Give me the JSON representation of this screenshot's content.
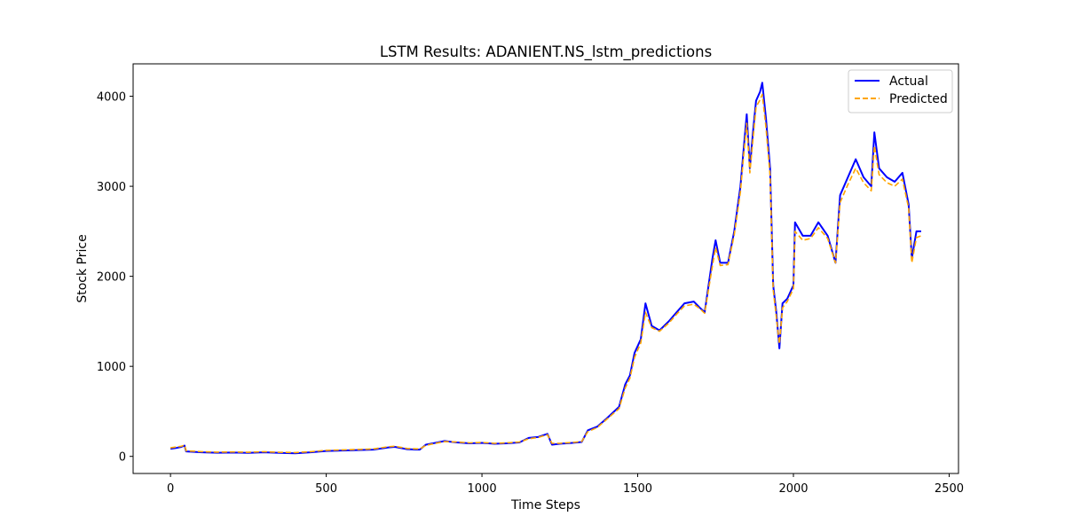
{
  "chart_data": {
    "type": "line",
    "title": "LSTM Results: ADANIENT.NS_lstm_predictions",
    "xlabel": "Time Steps",
    "ylabel": "Stock Price",
    "xlim": [
      -120,
      2530
    ],
    "ylim": [
      -190,
      4360
    ],
    "xticks": [
      0,
      500,
      1000,
      1500,
      2000,
      2500
    ],
    "yticks": [
      0,
      1000,
      2000,
      3000,
      4000
    ],
    "grid": false,
    "legend_position": "top-right",
    "series": [
      {
        "name": "Actual",
        "color": "#0000ff",
        "style": "solid",
        "points": [
          [
            0,
            85
          ],
          [
            20,
            95
          ],
          [
            35,
            105
          ],
          [
            45,
            120
          ],
          [
            50,
            55
          ],
          [
            100,
            45
          ],
          [
            150,
            40
          ],
          [
            200,
            42
          ],
          [
            250,
            38
          ],
          [
            300,
            45
          ],
          [
            350,
            38
          ],
          [
            400,
            35
          ],
          [
            450,
            45
          ],
          [
            500,
            60
          ],
          [
            550,
            65
          ],
          [
            600,
            70
          ],
          [
            650,
            75
          ],
          [
            700,
            100
          ],
          [
            720,
            105
          ],
          [
            760,
            80
          ],
          [
            800,
            75
          ],
          [
            820,
            130
          ],
          [
            850,
            150
          ],
          [
            880,
            170
          ],
          [
            920,
            155
          ],
          [
            960,
            145
          ],
          [
            1000,
            150
          ],
          [
            1040,
            140
          ],
          [
            1080,
            145
          ],
          [
            1120,
            155
          ],
          [
            1150,
            205
          ],
          [
            1180,
            215
          ],
          [
            1210,
            250
          ],
          [
            1225,
            130
          ],
          [
            1250,
            140
          ],
          [
            1290,
            150
          ],
          [
            1320,
            160
          ],
          [
            1340,
            290
          ],
          [
            1370,
            330
          ],
          [
            1400,
            420
          ],
          [
            1440,
            550
          ],
          [
            1460,
            800
          ],
          [
            1475,
            900
          ],
          [
            1490,
            1150
          ],
          [
            1510,
            1300
          ],
          [
            1525,
            1700
          ],
          [
            1545,
            1450
          ],
          [
            1570,
            1400
          ],
          [
            1600,
            1500
          ],
          [
            1625,
            1600
          ],
          [
            1650,
            1700
          ],
          [
            1680,
            1720
          ],
          [
            1700,
            1650
          ],
          [
            1715,
            1600
          ],
          [
            1740,
            2200
          ],
          [
            1750,
            2400
          ],
          [
            1765,
            2150
          ],
          [
            1790,
            2150
          ],
          [
            1810,
            2500
          ],
          [
            1830,
            3000
          ],
          [
            1840,
            3400
          ],
          [
            1850,
            3800
          ],
          [
            1860,
            3200
          ],
          [
            1870,
            3600
          ],
          [
            1880,
            3950
          ],
          [
            1893,
            4050
          ],
          [
            1900,
            4150
          ],
          [
            1912,
            3750
          ],
          [
            1925,
            3200
          ],
          [
            1935,
            1900
          ],
          [
            1945,
            1600
          ],
          [
            1955,
            1200
          ],
          [
            1965,
            1700
          ],
          [
            1980,
            1750
          ],
          [
            2000,
            1900
          ],
          [
            2005,
            2600
          ],
          [
            2030,
            2450
          ],
          [
            2055,
            2450
          ],
          [
            2080,
            2600
          ],
          [
            2110,
            2450
          ],
          [
            2135,
            2150
          ],
          [
            2150,
            2900
          ],
          [
            2175,
            3100
          ],
          [
            2200,
            3300
          ],
          [
            2225,
            3100
          ],
          [
            2250,
            3000
          ],
          [
            2260,
            3600
          ],
          [
            2275,
            3200
          ],
          [
            2300,
            3100
          ],
          [
            2325,
            3050
          ],
          [
            2350,
            3150
          ],
          [
            2370,
            2800
          ],
          [
            2380,
            2200
          ],
          [
            2395,
            2500
          ],
          [
            2410,
            2500
          ]
        ]
      },
      {
        "name": "Predicted",
        "color": "#ffa500",
        "style": "dashed",
        "points": [
          [
            0,
            95
          ],
          [
            20,
            105
          ],
          [
            35,
            112
          ],
          [
            45,
            125
          ],
          [
            50,
            62
          ],
          [
            100,
            52
          ],
          [
            150,
            47
          ],
          [
            200,
            49
          ],
          [
            250,
            45
          ],
          [
            300,
            52
          ],
          [
            350,
            45
          ],
          [
            400,
            42
          ],
          [
            450,
            52
          ],
          [
            500,
            67
          ],
          [
            550,
            72
          ],
          [
            600,
            77
          ],
          [
            650,
            82
          ],
          [
            700,
            107
          ],
          [
            720,
            112
          ],
          [
            760,
            88
          ],
          [
            800,
            82
          ],
          [
            820,
            122
          ],
          [
            850,
            145
          ],
          [
            880,
            165
          ],
          [
            920,
            160
          ],
          [
            960,
            150
          ],
          [
            1000,
            155
          ],
          [
            1040,
            145
          ],
          [
            1080,
            150
          ],
          [
            1120,
            160
          ],
          [
            1150,
            195
          ],
          [
            1180,
            210
          ],
          [
            1210,
            240
          ],
          [
            1225,
            145
          ],
          [
            1250,
            145
          ],
          [
            1290,
            155
          ],
          [
            1320,
            165
          ],
          [
            1340,
            275
          ],
          [
            1370,
            320
          ],
          [
            1400,
            410
          ],
          [
            1440,
            530
          ],
          [
            1460,
            760
          ],
          [
            1475,
            870
          ],
          [
            1490,
            1100
          ],
          [
            1510,
            1260
          ],
          [
            1525,
            1600
          ],
          [
            1545,
            1430
          ],
          [
            1570,
            1390
          ],
          [
            1600,
            1480
          ],
          [
            1625,
            1580
          ],
          [
            1650,
            1670
          ],
          [
            1680,
            1690
          ],
          [
            1700,
            1640
          ],
          [
            1715,
            1590
          ],
          [
            1740,
            2120
          ],
          [
            1750,
            2320
          ],
          [
            1765,
            2120
          ],
          [
            1790,
            2130
          ],
          [
            1810,
            2460
          ],
          [
            1830,
            2940
          ],
          [
            1840,
            3330
          ],
          [
            1850,
            3700
          ],
          [
            1860,
            3150
          ],
          [
            1870,
            3520
          ],
          [
            1880,
            3880
          ],
          [
            1893,
            3960
          ],
          [
            1900,
            4020
          ],
          [
            1912,
            3650
          ],
          [
            1925,
            3120
          ],
          [
            1935,
            1850
          ],
          [
            1945,
            1550
          ],
          [
            1955,
            1250
          ],
          [
            1965,
            1650
          ],
          [
            1980,
            1720
          ],
          [
            2000,
            1860
          ],
          [
            2005,
            2500
          ],
          [
            2030,
            2400
          ],
          [
            2055,
            2420
          ],
          [
            2080,
            2540
          ],
          [
            2110,
            2420
          ],
          [
            2135,
            2150
          ],
          [
            2150,
            2820
          ],
          [
            2175,
            3020
          ],
          [
            2200,
            3200
          ],
          [
            2225,
            3040
          ],
          [
            2250,
            2950
          ],
          [
            2260,
            3450
          ],
          [
            2275,
            3130
          ],
          [
            2300,
            3040
          ],
          [
            2325,
            3000
          ],
          [
            2350,
            3080
          ],
          [
            2370,
            2760
          ],
          [
            2380,
            2150
          ],
          [
            2395,
            2430
          ],
          [
            2410,
            2450
          ]
        ]
      }
    ]
  }
}
